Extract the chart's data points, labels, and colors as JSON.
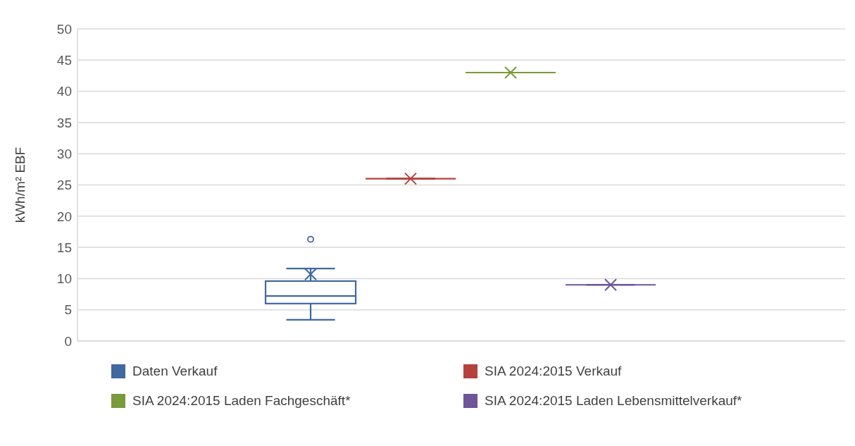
{
  "chart_data": {
    "type": "box",
    "ylabel": "kWh/m² EBF",
    "categories": [
      null
    ],
    "ylim": [
      0,
      50
    ],
    "yticks": [
      0,
      5,
      10,
      15,
      20,
      25,
      30,
      35,
      40,
      45,
      50
    ],
    "grid": "y",
    "legend": "bottom",
    "marker": "cross",
    "tick_labels": "y",
    "series": [
      {
        "name": "Daten Verkauf",
        "color": "#41689f",
        "boxes": [
          {
            "low": 3.4,
            "q1": 6.0,
            "median": 7.2,
            "q3": 9.6,
            "high": 11.6,
            "mean": 10.7,
            "outliers": [
              16.3
            ]
          }
        ]
      },
      {
        "name": "SIA 2024:2015 Verkauf",
        "color": "#b5413d",
        "boxes": [
          {
            "low": 26,
            "q1": 26,
            "median": 26,
            "q3": 26,
            "high": 26,
            "mean": 26
          }
        ]
      },
      {
        "name": "SIA 2024:2015 Laden Fachgeschäft*",
        "color": "#7a9a3c",
        "boxes": [
          {
            "low": 43,
            "q1": 43,
            "median": 43,
            "q3": 43,
            "high": 43,
            "mean": 43
          }
        ]
      },
      {
        "name": "SIA 2024:2015 Laden Lebensmittelverkauf*",
        "color": "#6e5598",
        "boxes": [
          {
            "low": 9,
            "q1": 9,
            "median": 9,
            "q3": 9,
            "high": 9,
            "mean": 9
          }
        ]
      }
    ]
  }
}
